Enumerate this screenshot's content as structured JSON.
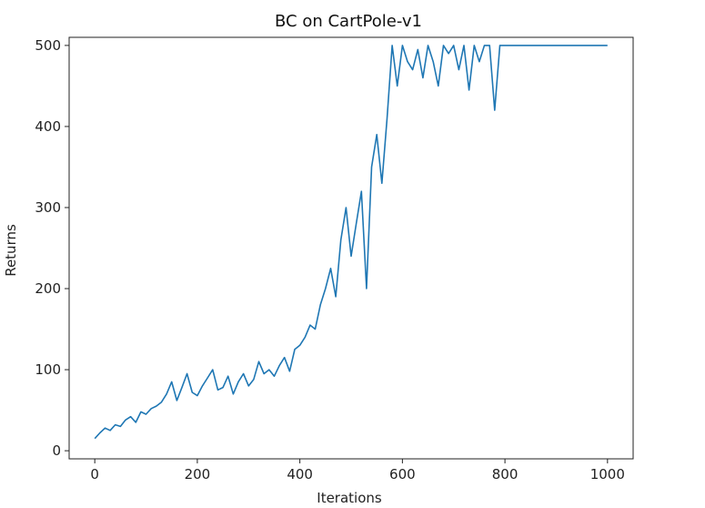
{
  "chart_data": {
    "type": "line",
    "title": "BC on CartPole-v1",
    "xlabel": "Iterations",
    "ylabel": "Returns",
    "xlim": [
      -50,
      1050
    ],
    "ylim": [
      -10,
      510
    ],
    "xticks": [
      0,
      200,
      400,
      600,
      800,
      1000
    ],
    "yticks": [
      0,
      100,
      200,
      300,
      400,
      500
    ],
    "xtick_labels": [
      "0",
      "200",
      "400",
      "600",
      "800",
      "1000"
    ],
    "ytick_labels": [
      "0",
      "100",
      "200",
      "300",
      "400",
      "500"
    ],
    "grid": false,
    "legend": false,
    "series": [
      {
        "color": "#1f77b4",
        "x": [
          0,
          10,
          20,
          30,
          40,
          50,
          60,
          70,
          80,
          90,
          100,
          110,
          120,
          130,
          140,
          150,
          160,
          170,
          180,
          190,
          200,
          210,
          220,
          230,
          240,
          250,
          260,
          270,
          280,
          290,
          300,
          310,
          320,
          330,
          340,
          350,
          360,
          370,
          380,
          390,
          400,
          410,
          420,
          430,
          440,
          450,
          460,
          470,
          480,
          490,
          500,
          510,
          520,
          530,
          540,
          550,
          560,
          570,
          580,
          590,
          600,
          610,
          620,
          630,
          640,
          650,
          660,
          670,
          680,
          690,
          700,
          710,
          720,
          730,
          740,
          750,
          760,
          770,
          780,
          790,
          800,
          810,
          820,
          830,
          840,
          850,
          860,
          870,
          880,
          890,
          900,
          910,
          920,
          930,
          940,
          950,
          960,
          970,
          980,
          990,
          1000
        ],
        "y": [
          15,
          22,
          28,
          25,
          32,
          30,
          38,
          42,
          35,
          48,
          45,
          52,
          55,
          60,
          70,
          85,
          62,
          78,
          95,
          72,
          68,
          80,
          90,
          100,
          75,
          78,
          92,
          70,
          85,
          95,
          80,
          88,
          110,
          95,
          100,
          92,
          105,
          115,
          98,
          125,
          130,
          140,
          155,
          150,
          180,
          200,
          225,
          190,
          260,
          300,
          240,
          280,
          320,
          200,
          350,
          390,
          330,
          410,
          500,
          450,
          500,
          480,
          470,
          495,
          460,
          500,
          480,
          450,
          500,
          490,
          500,
          470,
          500,
          445,
          500,
          480,
          500,
          500,
          420,
          500,
          500,
          500,
          500,
          500,
          500,
          500,
          500,
          500,
          500,
          500,
          500,
          500,
          500,
          500,
          500,
          500,
          500,
          500,
          500,
          500,
          500
        ]
      }
    ]
  }
}
